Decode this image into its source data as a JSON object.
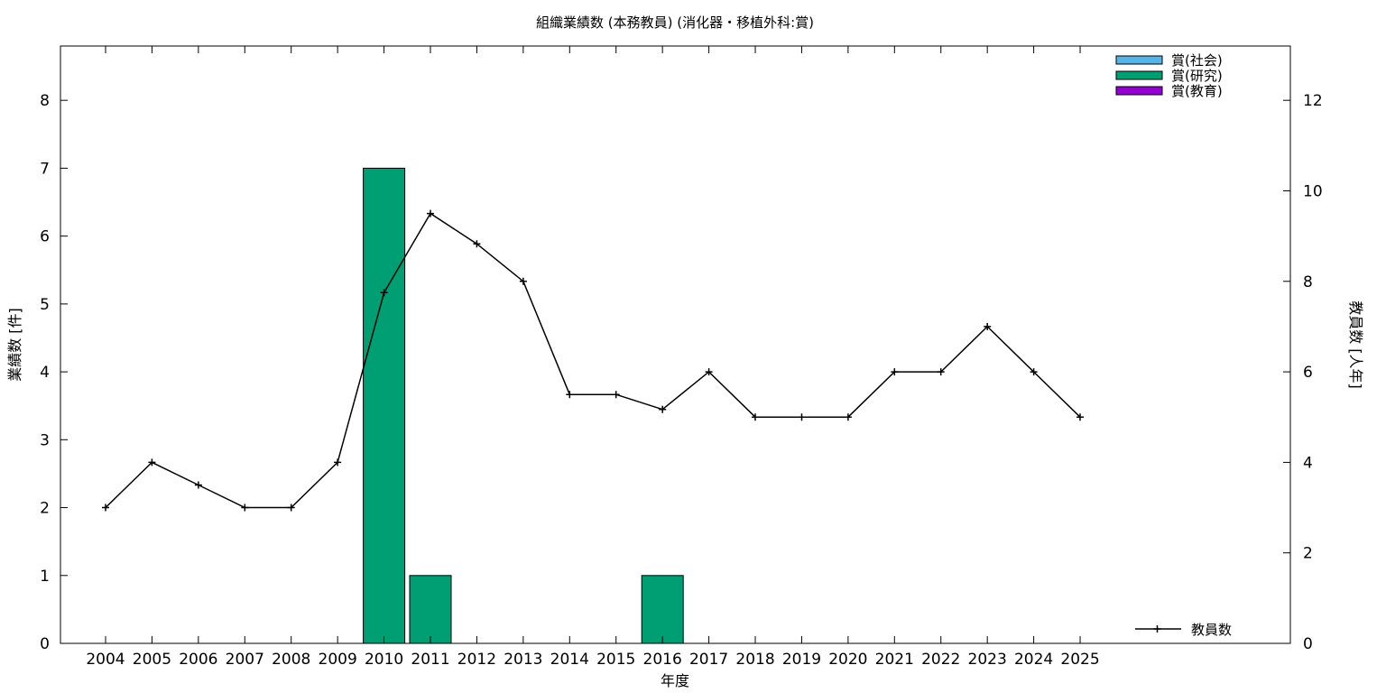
{
  "chart_data": {
    "type": "bar",
    "title": "組織業績数 (本務教員) (消化器・移植外科:賞)",
    "xlabel": "年度",
    "ylabel": "業績数 [件]",
    "y2label": "教員数 [人年]",
    "categories": [
      "2004",
      "2005",
      "2006",
      "2007",
      "2008",
      "2009",
      "2010",
      "2011",
      "2012",
      "2013",
      "2014",
      "2015",
      "2016",
      "2017",
      "2018",
      "2019",
      "2020",
      "2021",
      "2022",
      "2023",
      "2024",
      "2025"
    ],
    "ylim": [
      0,
      8.8
    ],
    "y2lim": [
      0,
      13.2
    ],
    "yticks": [
      0,
      1,
      2,
      3,
      4,
      5,
      6,
      7,
      8
    ],
    "y2ticks": [
      0,
      2,
      4,
      6,
      8,
      10,
      12
    ],
    "grid": false,
    "legend_position": "top-right",
    "series": [
      {
        "name": "賞(社会)",
        "kind": "bar",
        "axis": "y",
        "color": "#56b4e9",
        "values": [
          0,
          0,
          0,
          0,
          0,
          0,
          0,
          0,
          0,
          0,
          0,
          0,
          0,
          0,
          0,
          0,
          0,
          0,
          0,
          0,
          0,
          0
        ]
      },
      {
        "name": "賞(研究)",
        "kind": "bar",
        "axis": "y",
        "color": "#009e73",
        "values": [
          0,
          0,
          0,
          0,
          0,
          0,
          7,
          1,
          0,
          0,
          0,
          0,
          1,
          0,
          0,
          0,
          0,
          0,
          0,
          0,
          0,
          0
        ]
      },
      {
        "name": "賞(教育)",
        "kind": "bar",
        "axis": "y",
        "color": "#9400d3",
        "values": [
          0,
          0,
          0,
          0,
          0,
          0,
          0,
          0,
          0,
          0,
          0,
          0,
          0,
          0,
          0,
          0,
          0,
          0,
          0,
          0,
          0,
          0
        ]
      },
      {
        "name": "教員数",
        "kind": "line",
        "axis": "y2",
        "color": "#000000",
        "values": [
          3,
          4,
          3.5,
          3,
          3,
          4,
          7.75,
          9.5,
          8.83,
          8,
          5.5,
          5.5,
          5.17,
          6,
          5,
          5,
          5,
          6,
          6,
          7,
          6,
          5
        ]
      }
    ]
  }
}
